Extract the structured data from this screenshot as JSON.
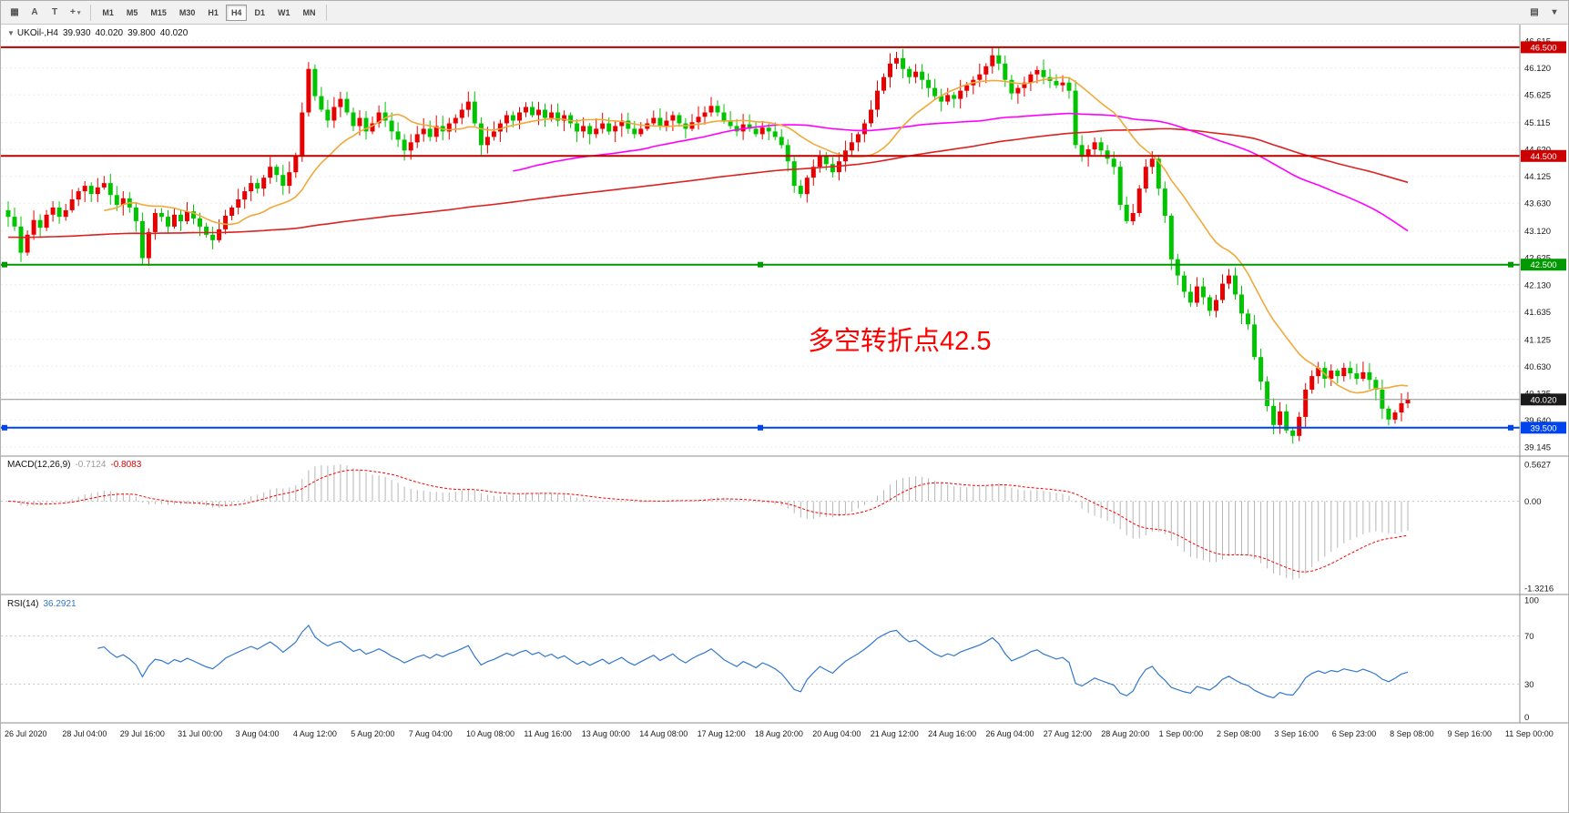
{
  "toolbar": {
    "icon_buttons": [
      {
        "name": "chart-grid",
        "glyph": "▦"
      },
      {
        "name": "cursor-a",
        "glyph": "A"
      },
      {
        "name": "text-tool",
        "glyph": "T"
      },
      {
        "name": "crosshair",
        "glyph": "+",
        "caret": true
      }
    ],
    "timeframes": [
      "M1",
      "M5",
      "M15",
      "M30",
      "H1",
      "H4",
      "D1",
      "W1",
      "MN"
    ],
    "active_timeframe": "H4",
    "right_buttons": [
      {
        "name": "toolbar-right-1",
        "glyph": "▤"
      },
      {
        "name": "toolbar-right-2",
        "glyph": "▾"
      }
    ]
  },
  "symbol_header": {
    "expander": "▼",
    "symbol": "UKOil-,H4",
    "open": "39.930",
    "high": "40.020",
    "low": "39.800",
    "close": "40.020"
  },
  "annotation": {
    "text": "多空转折点42.5",
    "color": "#ff0000"
  },
  "indicators": {
    "macd": {
      "label": "MACD(12,26,9)",
      "value_main": "-0.7124",
      "value_signal": "-0.8083"
    },
    "rsi": {
      "label": "RSI(14)",
      "value": "36.2921"
    }
  },
  "chart_data": {
    "type": "candlestick",
    "symbol": "UKOil-",
    "timeframe": "H4",
    "ohlc_current": {
      "open": 39.93,
      "high": 40.02,
      "low": 39.8,
      "close": 40.02
    },
    "ylim": [
      39.0,
      46.8
    ],
    "colors": {
      "up": "#e80000",
      "down": "#00c400",
      "macd_hist": "#b5b5b5",
      "macd_signal": "#ff0000",
      "rsi": "#3377cc"
    },
    "closes": [
      43.38,
      43.2,
      42.72,
      43.05,
      43.32,
      43.18,
      43.42,
      43.55,
      43.38,
      43.5,
      43.7,
      43.85,
      43.95,
      43.8,
      43.92,
      44.0,
      43.78,
      43.6,
      43.72,
      43.55,
      43.3,
      42.62,
      43.1,
      43.45,
      43.38,
      43.2,
      43.42,
      43.3,
      43.48,
      43.35,
      43.2,
      43.05,
      42.95,
      43.15,
      43.4,
      43.55,
      43.7,
      43.85,
      44.0,
      43.9,
      44.1,
      44.3,
      44.15,
      43.95,
      44.2,
      44.5,
      45.3,
      46.1,
      45.6,
      45.35,
      45.15,
      45.4,
      45.55,
      45.3,
      45.05,
      45.2,
      44.95,
      45.1,
      45.3,
      45.15,
      44.95,
      44.8,
      44.6,
      44.75,
      44.9,
      45.0,
      44.85,
      45.05,
      44.95,
      45.1,
      45.2,
      45.35,
      45.5,
      45.1,
      44.7,
      44.85,
      44.95,
      45.1,
      45.25,
      45.15,
      45.3,
      45.4,
      45.25,
      45.35,
      45.2,
      45.3,
      45.15,
      45.25,
      45.1,
      44.95,
      45.05,
      44.9,
      45.0,
      45.1,
      44.95,
      45.05,
      45.15,
      45.0,
      44.9,
      45.0,
      45.1,
      45.2,
      45.05,
      45.15,
      45.25,
      45.1,
      45.0,
      45.12,
      45.22,
      45.3,
      45.42,
      45.3,
      45.15,
      45.05,
      44.95,
      45.08,
      45.0,
      44.9,
      45.02,
      44.95,
      44.85,
      44.7,
      44.4,
      43.95,
      43.8,
      44.1,
      44.3,
      44.5,
      44.35,
      44.2,
      44.4,
      44.6,
      44.75,
      44.9,
      45.1,
      45.35,
      45.7,
      45.95,
      46.2,
      46.3,
      46.1,
      45.95,
      46.05,
      45.9,
      45.75,
      45.6,
      45.5,
      45.62,
      45.55,
      45.7,
      45.8,
      45.9,
      46.0,
      46.15,
      46.35,
      46.2,
      45.9,
      45.65,
      45.75,
      45.85,
      46.0,
      46.08,
      45.95,
      45.88,
      45.8,
      45.85,
      45.7,
      44.7,
      44.5,
      44.62,
      44.75,
      44.6,
      44.45,
      44.3,
      43.6,
      43.3,
      43.45,
      43.9,
      44.3,
      44.45,
      43.9,
      43.4,
      42.6,
      42.3,
      42.0,
      41.8,
      42.1,
      41.9,
      41.65,
      41.85,
      42.15,
      42.3,
      41.95,
      41.6,
      41.4,
      40.8,
      40.35,
      39.9,
      39.55,
      39.8,
      39.45,
      39.35,
      39.7,
      40.2,
      40.45,
      40.6,
      40.4,
      40.55,
      40.45,
      40.6,
      40.5,
      40.4,
      40.52,
      40.38,
      40.2,
      39.85,
      39.65,
      39.78,
      39.95,
      40.02
    ],
    "moving_averages": [
      {
        "name": "slow-red",
        "color": "#dd2222",
        "window": 150,
        "seed": 43.0,
        "seed_count": 120,
        "width": 1.6
      },
      {
        "name": "mid-magenta",
        "color": "#ff00ff",
        "window": 80,
        "width": 1.6
      },
      {
        "name": "fast-orange",
        "color": "#efa93c",
        "window": 16,
        "width": 1.6
      }
    ],
    "hlines": [
      {
        "price": 46.5,
        "color": "#bb0000",
        "width": 2
      },
      {
        "price": 44.5,
        "color": "#bb0000",
        "width": 2
      },
      {
        "price": 42.5,
        "color": "#009900",
        "width": 2,
        "handles": true
      },
      {
        "price": 40.02,
        "color": "#909090",
        "width": 1
      },
      {
        "price": 39.5,
        "color": "#0044ee",
        "width": 2,
        "handles": true
      }
    ],
    "grid_labels": [
      {
        "label": "46.615",
        "price": 46.615
      },
      {
        "label": "46.120",
        "price": 46.12
      },
      {
        "label": "45.625",
        "price": 45.625
      },
      {
        "label": "45.115",
        "price": 45.115
      },
      {
        "label": "44.620",
        "price": 44.62
      },
      {
        "label": "44.125",
        "price": 44.125
      },
      {
        "label": "43.630",
        "price": 43.63
      },
      {
        "label": "43.120",
        "price": 43.12
      },
      {
        "label": "42.625",
        "price": 42.625
      },
      {
        "label": "42.130",
        "price": 42.13
      },
      {
        "label": "41.635",
        "price": 41.635
      },
      {
        "label": "41.125",
        "price": 41.125
      },
      {
        "label": "40.630",
        "price": 40.63
      },
      {
        "label": "40.135",
        "price": 40.135
      },
      {
        "label": "39.640",
        "price": 39.64
      },
      {
        "label": "39.145",
        "price": 39.145
      }
    ],
    "badges": [
      {
        "label": "46.500",
        "price": 46.5,
        "bg": "#cc0000"
      },
      {
        "label": "44.500",
        "price": 44.5,
        "bg": "#cc0000"
      },
      {
        "label": "42.500",
        "price": 42.5,
        "bg": "#009900"
      },
      {
        "label": "40.020",
        "price": 40.02,
        "bg": "#1a1a1a"
      },
      {
        "label": "39.500",
        "price": 39.5,
        "bg": "#0044ee"
      }
    ],
    "macd": {
      "params": [
        12,
        26,
        9
      ],
      "value_main": -0.7124,
      "value_signal": -0.8083,
      "axis": [
        {
          "label": "0.5627",
          "value": 0.5627
        },
        {
          "label": "0.00",
          "value": 0
        },
        {
          "label": "-1.3216",
          "value": -1.3216
        }
      ]
    },
    "rsi": {
      "period": 14,
      "value": 36.2921,
      "levels": [
        70,
        30
      ],
      "axis": [
        {
          "label": "100",
          "value": 100
        },
        {
          "label": "70",
          "value": 70
        },
        {
          "label": "30",
          "value": 30
        },
        {
          "label": "0",
          "value": 0
        }
      ]
    },
    "time_labels": [
      "26 Jul 2020",
      "28 Jul 04:00",
      "29 Jul 16:00",
      "31 Jul 00:00",
      "3 Aug 04:00",
      "4 Aug 12:00",
      "5 Aug 20:00",
      "7 Aug 04:00",
      "10 Aug 08:00",
      "11 Aug 16:00",
      "13 Aug 00:00",
      "14 Aug 08:00",
      "17 Aug 12:00",
      "18 Aug 20:00",
      "20 Aug 04:00",
      "21 Aug 12:00",
      "24 Aug 16:00",
      "26 Aug 04:00",
      "27 Aug 12:00",
      "28 Aug 20:00",
      "1 Sep 00:00",
      "2 Sep 08:00",
      "3 Sep 16:00",
      "6 Sep 23:00",
      "8 Sep 08:00",
      "9 Sep 16:00",
      "11 Sep 00:00"
    ]
  }
}
